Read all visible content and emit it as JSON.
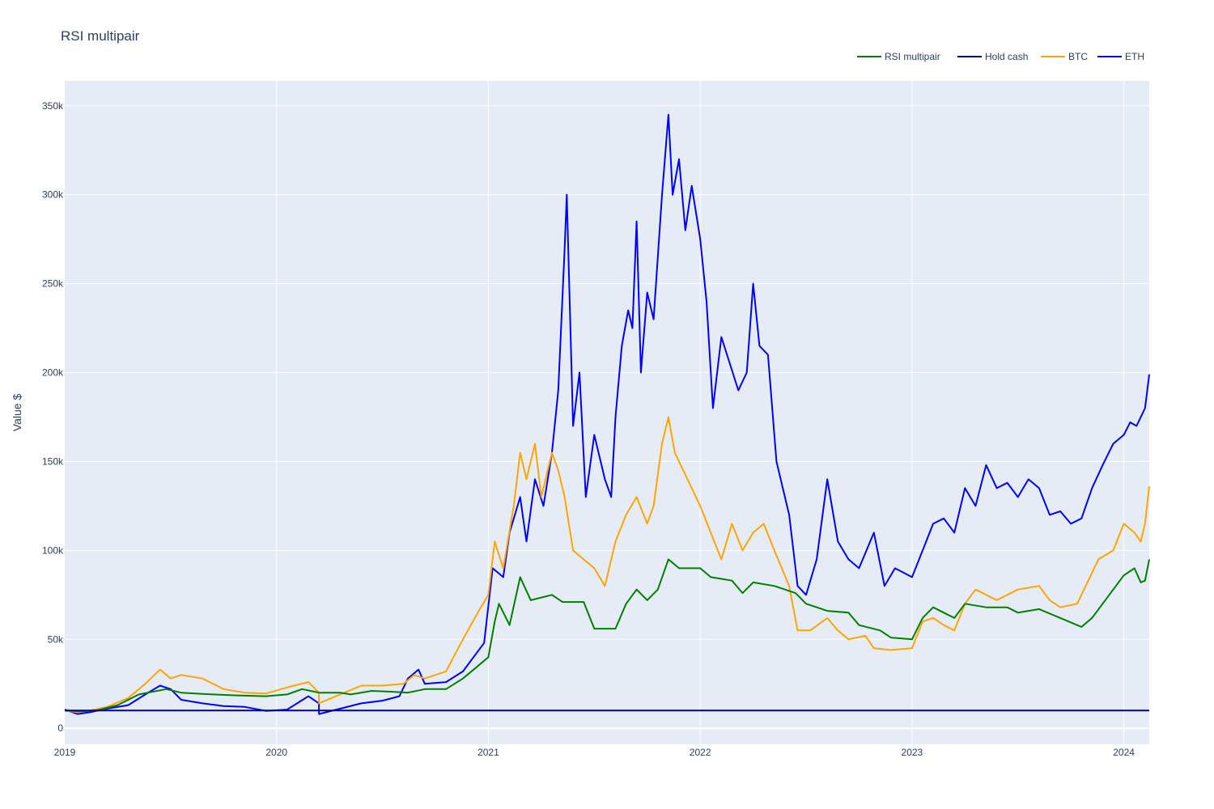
{
  "chart_data": {
    "type": "line",
    "title": "RSI multipair",
    "xlabel": "",
    "ylabel": "Value $",
    "xlim": [
      2019.0,
      2024.12
    ],
    "ylim": [
      -9000,
      364000
    ],
    "x_ticks": [
      {
        "value": 2019,
        "label": "2019"
      },
      {
        "value": 2020,
        "label": "2020"
      },
      {
        "value": 2021,
        "label": "2021"
      },
      {
        "value": 2022,
        "label": "2022"
      },
      {
        "value": 2023,
        "label": "2023"
      },
      {
        "value": 2024,
        "label": "2024"
      }
    ],
    "y_ticks": [
      {
        "value": 0,
        "label": "0"
      },
      {
        "value": 50000,
        "label": "50k"
      },
      {
        "value": 100000,
        "label": "100k"
      },
      {
        "value": 150000,
        "label": "150k"
      },
      {
        "value": 200000,
        "label": "200k"
      },
      {
        "value": 250000,
        "label": "250k"
      },
      {
        "value": 300000,
        "label": "300k"
      },
      {
        "value": 350000,
        "label": "350k"
      }
    ],
    "grid": true,
    "legend_position": "top-right",
    "background_color": "#e5ecf6",
    "series": [
      {
        "name": "ETH",
        "color": "#0000ff",
        "points": [
          [
            2019.0,
            10500
          ],
          [
            2019.06,
            8000
          ],
          [
            2019.12,
            9000
          ],
          [
            2019.2,
            11000
          ],
          [
            2019.3,
            13000
          ],
          [
            2019.38,
            19000
          ],
          [
            2019.45,
            24000
          ],
          [
            2019.5,
            22000
          ],
          [
            2019.55,
            16000
          ],
          [
            2019.65,
            14000
          ],
          [
            2019.75,
            12500
          ],
          [
            2019.85,
            12000
          ],
          [
            2019.95,
            9800
          ],
          [
            2020.05,
            10500
          ],
          [
            2020.15,
            18000
          ],
          [
            2020.2,
            14000
          ],
          [
            2020.2,
            8000
          ],
          [
            2020.3,
            11000
          ],
          [
            2020.4,
            14000
          ],
          [
            2020.5,
            15500
          ],
          [
            2020.58,
            18000
          ],
          [
            2020.62,
            28000
          ],
          [
            2020.67,
            33000
          ],
          [
            2020.7,
            25000
          ],
          [
            2020.8,
            26000
          ],
          [
            2020.88,
            32000
          ],
          [
            2020.93,
            40000
          ],
          [
            2020.98,
            48000
          ],
          [
            2021.02,
            90000
          ],
          [
            2021.07,
            85000
          ],
          [
            2021.1,
            110000
          ],
          [
            2021.15,
            130000
          ],
          [
            2021.18,
            105000
          ],
          [
            2021.22,
            140000
          ],
          [
            2021.26,
            125000
          ],
          [
            2021.3,
            155000
          ],
          [
            2021.33,
            190000
          ],
          [
            2021.36,
            270000
          ],
          [
            2021.37,
            300000
          ],
          [
            2021.4,
            170000
          ],
          [
            2021.43,
            200000
          ],
          [
            2021.46,
            130000
          ],
          [
            2021.5,
            165000
          ],
          [
            2021.55,
            140000
          ],
          [
            2021.58,
            130000
          ],
          [
            2021.6,
            175000
          ],
          [
            2021.63,
            215000
          ],
          [
            2021.66,
            235000
          ],
          [
            2021.68,
            225000
          ],
          [
            2021.7,
            285000
          ],
          [
            2021.72,
            200000
          ],
          [
            2021.75,
            245000
          ],
          [
            2021.78,
            230000
          ],
          [
            2021.82,
            300000
          ],
          [
            2021.85,
            345000
          ],
          [
            2021.87,
            300000
          ],
          [
            2021.9,
            320000
          ],
          [
            2021.93,
            280000
          ],
          [
            2021.96,
            305000
          ],
          [
            2022.0,
            275000
          ],
          [
            2022.03,
            240000
          ],
          [
            2022.06,
            180000
          ],
          [
            2022.1,
            220000
          ],
          [
            2022.14,
            205000
          ],
          [
            2022.18,
            190000
          ],
          [
            2022.22,
            200000
          ],
          [
            2022.25,
            250000
          ],
          [
            2022.28,
            215000
          ],
          [
            2022.32,
            210000
          ],
          [
            2022.36,
            150000
          ],
          [
            2022.42,
            120000
          ],
          [
            2022.46,
            80000
          ],
          [
            2022.5,
            75000
          ],
          [
            2022.55,
            95000
          ],
          [
            2022.6,
            140000
          ],
          [
            2022.65,
            105000
          ],
          [
            2022.7,
            95000
          ],
          [
            2022.75,
            90000
          ],
          [
            2022.82,
            110000
          ],
          [
            2022.87,
            80000
          ],
          [
            2022.92,
            90000
          ],
          [
            2023.0,
            85000
          ],
          [
            2023.05,
            100000
          ],
          [
            2023.1,
            115000
          ],
          [
            2023.15,
            118000
          ],
          [
            2023.2,
            110000
          ],
          [
            2023.25,
            135000
          ],
          [
            2023.3,
            125000
          ],
          [
            2023.35,
            148000
          ],
          [
            2023.4,
            135000
          ],
          [
            2023.45,
            138000
          ],
          [
            2023.5,
            130000
          ],
          [
            2023.55,
            140000
          ],
          [
            2023.6,
            135000
          ],
          [
            2023.65,
            120000
          ],
          [
            2023.7,
            122000
          ],
          [
            2023.75,
            115000
          ],
          [
            2023.8,
            118000
          ],
          [
            2023.85,
            135000
          ],
          [
            2023.9,
            148000
          ],
          [
            2023.95,
            160000
          ],
          [
            2024.0,
            165000
          ],
          [
            2024.03,
            172000
          ],
          [
            2024.06,
            170000
          ],
          [
            2024.1,
            180000
          ],
          [
            2024.12,
            199000
          ]
        ]
      },
      {
        "name": "BTC",
        "color": "#ffa500",
        "points": [
          [
            2019.0,
            10000
          ],
          [
            2019.06,
            9000
          ],
          [
            2019.12,
            10000
          ],
          [
            2019.2,
            12000
          ],
          [
            2019.3,
            17000
          ],
          [
            2019.38,
            25000
          ],
          [
            2019.45,
            33000
          ],
          [
            2019.5,
            28000
          ],
          [
            2019.55,
            30000
          ],
          [
            2019.65,
            28000
          ],
          [
            2019.75,
            22000
          ],
          [
            2019.85,
            20000
          ],
          [
            2019.95,
            19500
          ],
          [
            2020.05,
            23000
          ],
          [
            2020.15,
            26000
          ],
          [
            2020.2,
            20000
          ],
          [
            2020.2,
            14000
          ],
          [
            2020.3,
            19000
          ],
          [
            2020.4,
            24000
          ],
          [
            2020.5,
            24000
          ],
          [
            2020.6,
            25000
          ],
          [
            2020.65,
            30000
          ],
          [
            2020.7,
            28000
          ],
          [
            2020.8,
            32000
          ],
          [
            2020.88,
            50000
          ],
          [
            2020.95,
            65000
          ],
          [
            2021.0,
            75000
          ],
          [
            2021.03,
            105000
          ],
          [
            2021.07,
            90000
          ],
          [
            2021.12,
            125000
          ],
          [
            2021.15,
            155000
          ],
          [
            2021.18,
            140000
          ],
          [
            2021.22,
            160000
          ],
          [
            2021.25,
            130000
          ],
          [
            2021.3,
            155000
          ],
          [
            2021.33,
            145000
          ],
          [
            2021.36,
            130000
          ],
          [
            2021.4,
            100000
          ],
          [
            2021.45,
            95000
          ],
          [
            2021.5,
            90000
          ],
          [
            2021.55,
            80000
          ],
          [
            2021.6,
            105000
          ],
          [
            2021.65,
            120000
          ],
          [
            2021.7,
            130000
          ],
          [
            2021.75,
            115000
          ],
          [
            2021.78,
            125000
          ],
          [
            2021.82,
            160000
          ],
          [
            2021.85,
            175000
          ],
          [
            2021.88,
            155000
          ],
          [
            2021.92,
            145000
          ],
          [
            2022.0,
            125000
          ],
          [
            2022.05,
            110000
          ],
          [
            2022.1,
            95000
          ],
          [
            2022.15,
            115000
          ],
          [
            2022.2,
            100000
          ],
          [
            2022.25,
            110000
          ],
          [
            2022.3,
            115000
          ],
          [
            2022.35,
            100000
          ],
          [
            2022.42,
            80000
          ],
          [
            2022.46,
            55000
          ],
          [
            2022.52,
            55000
          ],
          [
            2022.6,
            62000
          ],
          [
            2022.65,
            55000
          ],
          [
            2022.7,
            50000
          ],
          [
            2022.78,
            52000
          ],
          [
            2022.82,
            45000
          ],
          [
            2022.9,
            44000
          ],
          [
            2023.0,
            45000
          ],
          [
            2023.05,
            60000
          ],
          [
            2023.1,
            62000
          ],
          [
            2023.15,
            58000
          ],
          [
            2023.2,
            55000
          ],
          [
            2023.25,
            70000
          ],
          [
            2023.3,
            78000
          ],
          [
            2023.4,
            72000
          ],
          [
            2023.5,
            78000
          ],
          [
            2023.6,
            80000
          ],
          [
            2023.65,
            72000
          ],
          [
            2023.7,
            68000
          ],
          [
            2023.78,
            70000
          ],
          [
            2023.82,
            80000
          ],
          [
            2023.88,
            95000
          ],
          [
            2023.95,
            100000
          ],
          [
            2024.0,
            115000
          ],
          [
            2024.05,
            110000
          ],
          [
            2024.08,
            105000
          ],
          [
            2024.1,
            115000
          ],
          [
            2024.12,
            136000
          ]
        ]
      },
      {
        "name": "RSI multipair",
        "color": "#008000",
        "points": [
          [
            2019.0,
            10000
          ],
          [
            2019.08,
            9500
          ],
          [
            2019.15,
            10000
          ],
          [
            2019.25,
            13000
          ],
          [
            2019.35,
            19000
          ],
          [
            2019.48,
            22000
          ],
          [
            2019.55,
            20000
          ],
          [
            2019.7,
            19000
          ],
          [
            2019.8,
            18500
          ],
          [
            2019.95,
            18000
          ],
          [
            2020.05,
            19000
          ],
          [
            2020.12,
            22000
          ],
          [
            2020.2,
            20000
          ],
          [
            2020.3,
            20000
          ],
          [
            2020.35,
            19000
          ],
          [
            2020.45,
            21000
          ],
          [
            2020.55,
            20500
          ],
          [
            2020.62,
            20000
          ],
          [
            2020.7,
            22000
          ],
          [
            2020.8,
            22000
          ],
          [
            2020.88,
            28000
          ],
          [
            2020.95,
            35000
          ],
          [
            2021.0,
            40000
          ],
          [
            2021.03,
            60000
          ],
          [
            2021.05,
            70000
          ],
          [
            2021.1,
            58000
          ],
          [
            2021.15,
            85000
          ],
          [
            2021.2,
            72000
          ],
          [
            2021.3,
            75000
          ],
          [
            2021.35,
            71000
          ],
          [
            2021.45,
            71000
          ],
          [
            2021.5,
            56000
          ],
          [
            2021.6,
            56000
          ],
          [
            2021.65,
            70000
          ],
          [
            2021.7,
            78000
          ],
          [
            2021.75,
            72000
          ],
          [
            2021.8,
            78000
          ],
          [
            2021.85,
            95000
          ],
          [
            2021.9,
            90000
          ],
          [
            2022.0,
            90000
          ],
          [
            2022.05,
            85000
          ],
          [
            2022.1,
            84000
          ],
          [
            2022.15,
            83000
          ],
          [
            2022.2,
            76000
          ],
          [
            2022.25,
            82000
          ],
          [
            2022.35,
            80000
          ],
          [
            2022.45,
            76000
          ],
          [
            2022.5,
            70000
          ],
          [
            2022.6,
            66000
          ],
          [
            2022.7,
            65000
          ],
          [
            2022.75,
            58000
          ],
          [
            2022.85,
            55000
          ],
          [
            2022.9,
            51000
          ],
          [
            2023.0,
            50000
          ],
          [
            2023.05,
            62000
          ],
          [
            2023.1,
            68000
          ],
          [
            2023.15,
            65000
          ],
          [
            2023.2,
            62000
          ],
          [
            2023.25,
            70000
          ],
          [
            2023.35,
            68000
          ],
          [
            2023.45,
            68000
          ],
          [
            2023.5,
            65000
          ],
          [
            2023.6,
            67000
          ],
          [
            2023.7,
            62000
          ],
          [
            2023.8,
            57000
          ],
          [
            2023.85,
            62000
          ],
          [
            2023.9,
            70000
          ],
          [
            2023.95,
            78000
          ],
          [
            2024.0,
            86000
          ],
          [
            2024.05,
            90000
          ],
          [
            2024.08,
            82000
          ],
          [
            2024.1,
            83000
          ],
          [
            2024.12,
            95000
          ]
        ]
      },
      {
        "name": "Hold cash",
        "color": "#00008b",
        "points": [
          [
            2019.0,
            10000
          ],
          [
            2024.12,
            10000
          ]
        ]
      }
    ]
  }
}
